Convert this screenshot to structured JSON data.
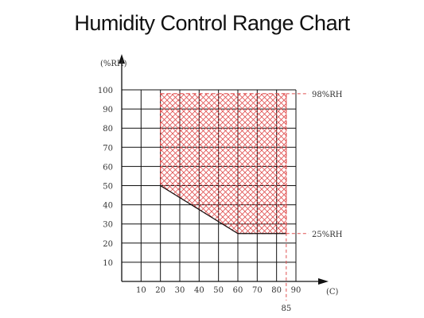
{
  "chart_data": {
    "type": "area",
    "title": "Humidity Control Range Chart",
    "xlabel": "(C)",
    "ylabel": "(%RH)",
    "xlim": [
      0,
      90
    ],
    "ylim": [
      0,
      100
    ],
    "x_ticks": [
      10,
      20,
      30,
      40,
      50,
      60,
      70,
      80,
      90
    ],
    "y_ticks": [
      10,
      20,
      30,
      40,
      50,
      60,
      70,
      80,
      90,
      100
    ],
    "grid": true,
    "region": {
      "fill": "crosshatch",
      "color": "#e05050",
      "points": [
        [
          20,
          98
        ],
        [
          85,
          98
        ],
        [
          85,
          25
        ],
        [
          60,
          25
        ],
        [
          20,
          50
        ]
      ]
    },
    "annotations": [
      {
        "label": "98%RH",
        "y": 98
      },
      {
        "label": "25%RH",
        "y": 25
      },
      {
        "label": "85",
        "x": 85
      }
    ]
  }
}
